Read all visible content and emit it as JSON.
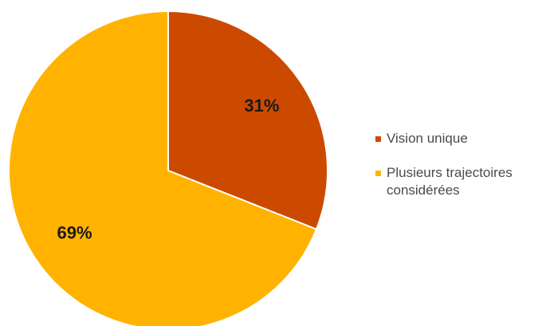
{
  "chart_data": {
    "type": "pie",
    "title": "",
    "slices": [
      {
        "label": "Vision unique",
        "value": 31,
        "display": "31%",
        "color": "#CC4A00"
      },
      {
        "label": "Plusieurs trajectoires considérées",
        "value": 69,
        "display": "69%",
        "color": "#FFB300"
      }
    ],
    "start_angle_deg": 0,
    "direction": "clockwise",
    "legend_position": "right"
  }
}
